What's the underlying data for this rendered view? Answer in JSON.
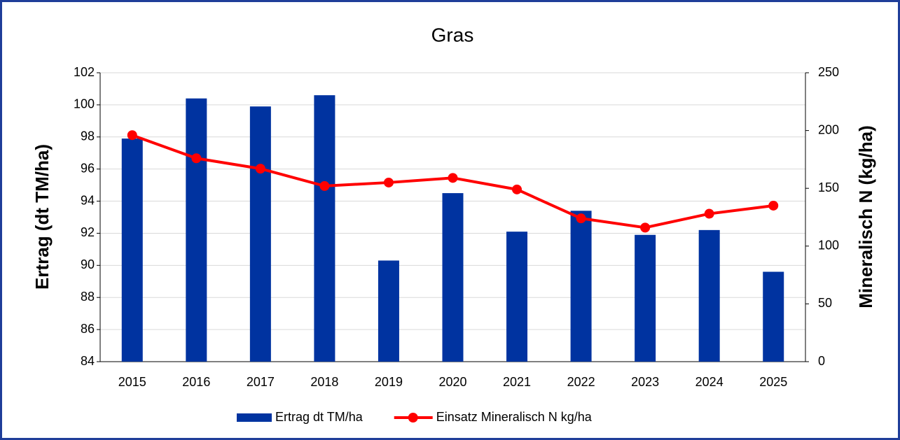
{
  "chart_data": {
    "type": "bar_line",
    "title": "Gras",
    "y_label": "Ertrag (dt TM/ha)",
    "y2_label": "Mineralisch N (kg/ha)",
    "categories": [
      "2015",
      "2016",
      "2017",
      "2018",
      "2019",
      "2020",
      "2021",
      "2022",
      "2023",
      "2024",
      "2025"
    ],
    "series": [
      {
        "name": "Ertrag dt TM/ha",
        "type": "bar",
        "color": "#0033a0",
        "values": [
          97.9,
          100.4,
          99.9,
          100.6,
          90.3,
          94.5,
          92.1,
          93.4,
          91.9,
          92.2,
          89.6
        ]
      },
      {
        "name": "Einsatz Mineralisch N kg/ha",
        "type": "line",
        "axis": "y2",
        "color": "#ff0000",
        "values": [
          196,
          176,
          167,
          152,
          155,
          159,
          149,
          124,
          116,
          128,
          135
        ]
      }
    ],
    "ylim": [
      84,
      102
    ],
    "yticks": [
      84,
      86,
      88,
      90,
      92,
      94,
      96,
      98,
      100,
      102
    ],
    "y2lim": [
      0,
      250
    ],
    "y2ticks": [
      0,
      50,
      100,
      150,
      200,
      250
    ],
    "grid": true,
    "legend": "bottom"
  }
}
